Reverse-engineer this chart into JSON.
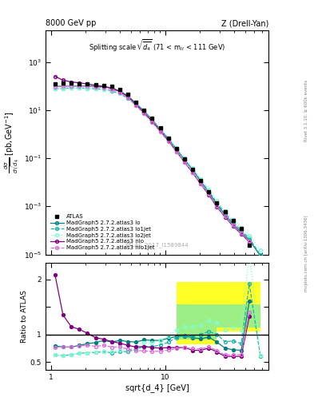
{
  "title_top_left": "8000 GeV pp",
  "title_top_right": "Z (Drell-Yan)",
  "main_title": "Splitting scale $\\sqrt{\\overline{d_4}}$ (71 < m$_{ll}$ < 111 GeV)",
  "ylabel_main": "d$\\sigma$/dsqrt($d_4$) [pb,GeV$^{-1}$]",
  "ylabel_ratio": "Ratio to ATLAS",
  "xlabel": "sqrt{d_4} [GeV]",
  "watermark": "ATLAS_2017_I1589844",
  "right_label": "Rivet 3.1.10, ≥ 600k events",
  "right_label2": "mcplots.cern.ch [arXiv:1306.3436]",
  "atlas_x": [
    1.09,
    1.28,
    1.51,
    1.78,
    2.09,
    2.46,
    2.9,
    3.41,
    4.01,
    4.72,
    5.56,
    6.54,
    7.7,
    9.06,
    10.67,
    12.55,
    14.77,
    17.38,
    20.45,
    24.07,
    28.33,
    33.35,
    39.24,
    46.2,
    54.4
  ],
  "atlas_y": [
    120,
    130,
    130,
    125,
    120,
    115,
    105,
    95,
    70,
    45,
    22,
    10,
    4.5,
    1.8,
    0.7,
    0.25,
    0.09,
    0.035,
    0.012,
    0.004,
    0.0014,
    0.0006,
    0.00025,
    0.00012,
    2.5e-05
  ],
  "lo_x": [
    1.09,
    1.28,
    1.51,
    1.78,
    2.09,
    2.46,
    2.9,
    3.41,
    4.01,
    4.72,
    5.56,
    6.54,
    7.7,
    9.06,
    10.67,
    12.55,
    14.77,
    17.38,
    20.45,
    24.07,
    28.33,
    33.35,
    39.24,
    46.2,
    54.4,
    68.0
  ],
  "lo_y": [
    95,
    100,
    100,
    100,
    100,
    98,
    93,
    82,
    62,
    39,
    19,
    9,
    4.0,
    1.6,
    0.65,
    0.24,
    0.087,
    0.033,
    0.011,
    0.0038,
    0.0012,
    0.00045,
    0.00018,
    8.5e-05,
    4e-05,
    8.7e-06
  ],
  "lo1jet_x": [
    1.09,
    1.28,
    1.51,
    1.78,
    2.09,
    2.46,
    2.9,
    3.41,
    4.01,
    4.72,
    5.56,
    6.54,
    7.7,
    9.06,
    10.67,
    12.55,
    14.77,
    17.38,
    20.45,
    24.07,
    28.33,
    33.35,
    39.24,
    46.2,
    54.4,
    68.0
  ],
  "lo1jet_y": [
    75,
    80,
    82,
    82,
    80,
    77,
    72,
    63,
    48,
    31,
    16,
    7.8,
    3.5,
    1.45,
    0.6,
    0.235,
    0.088,
    0.034,
    0.012,
    0.0042,
    0.0014,
    0.00052,
    0.00022,
    0.0001,
    4.8e-05,
    9.5e-06
  ],
  "lo2jet_x": [
    1.09,
    1.28,
    1.51,
    1.78,
    2.09,
    2.46,
    2.9,
    3.41,
    4.01,
    4.72,
    5.56,
    6.54,
    7.7,
    9.06,
    10.67,
    12.55,
    14.77,
    17.38,
    20.45,
    24.07,
    28.33,
    33.35,
    39.24,
    46.2,
    54.4,
    68.0
  ],
  "lo2jet_y": [
    75,
    80,
    82,
    82,
    80,
    78,
    73,
    65,
    50,
    33,
    17,
    8.5,
    3.8,
    1.6,
    0.68,
    0.27,
    0.102,
    0.04,
    0.014,
    0.005,
    0.0017,
    0.00065,
    0.00028,
    0.00013,
    6.2e-05,
    1.55e-05
  ],
  "nlo_x": [
    1.09,
    1.28,
    1.51,
    1.78,
    2.09,
    2.46,
    2.9,
    3.41,
    4.01,
    4.72,
    5.56,
    6.54,
    7.7,
    9.06,
    10.67,
    12.55,
    14.77,
    17.38,
    20.45,
    24.07,
    28.33,
    33.35,
    39.24,
    46.2,
    54.4
  ],
  "nlo_y": [
    250,
    175,
    148,
    136,
    122,
    108,
    96,
    83,
    59,
    36,
    17,
    7.8,
    3.4,
    1.35,
    0.53,
    0.19,
    0.068,
    0.025,
    0.0085,
    0.003,
    0.00095,
    0.00036,
    0.00015,
    7.2e-05,
    3.3e-05
  ],
  "nlo1jet_x": [
    1.09,
    1.28,
    1.51,
    1.78,
    2.09,
    2.46,
    2.9,
    3.41,
    4.01,
    4.72,
    5.56,
    6.54,
    7.7,
    9.06,
    10.67,
    12.55,
    14.77,
    17.38,
    20.45,
    24.07,
    28.33,
    33.35,
    39.24,
    46.2,
    54.4
  ],
  "nlo1jet_y": [
    92,
    100,
    100,
    99,
    96,
    90,
    84,
    73,
    54,
    33,
    15.5,
    7.0,
    3.1,
    1.25,
    0.5,
    0.185,
    0.068,
    0.026,
    0.0088,
    0.0031,
    0.00099,
    0.000375,
    0.000158,
    7.6e-05,
    3.5e-05
  ],
  "ratio_lo_x": [
    1.09,
    1.28,
    1.51,
    1.78,
    2.09,
    2.46,
    2.9,
    3.41,
    4.01,
    4.72,
    5.56,
    6.54,
    7.7,
    9.06,
    10.67,
    12.55,
    14.77,
    17.38,
    20.45,
    24.07,
    28.33,
    33.35,
    39.24,
    46.2,
    54.4
  ],
  "ratio_lo_y": [
    0.79,
    0.77,
    0.77,
    0.8,
    0.83,
    0.85,
    0.89,
    0.86,
    0.89,
    0.87,
    0.86,
    0.9,
    0.89,
    0.89,
    0.93,
    0.96,
    0.97,
    0.94,
    0.92,
    0.95,
    0.86,
    0.75,
    0.72,
    0.71,
    1.6
  ],
  "ratio_lo1jet_x": [
    1.09,
    1.28,
    1.51,
    1.78,
    2.09,
    2.46,
    2.9,
    3.41,
    4.01,
    4.72,
    5.56,
    6.54,
    7.7,
    9.06,
    10.67,
    12.55,
    14.77,
    17.38,
    20.45,
    24.07,
    28.33,
    33.35,
    39.24,
    46.2,
    54.4,
    68.0
  ],
  "ratio_lo1jet_y": [
    0.625,
    0.615,
    0.63,
    0.655,
    0.667,
    0.67,
    0.686,
    0.663,
    0.686,
    0.689,
    0.727,
    0.78,
    0.778,
    0.806,
    0.857,
    0.94,
    0.978,
    0.971,
    1.0,
    1.05,
    1.0,
    0.867,
    0.88,
    0.833,
    1.92,
    0.6
  ],
  "ratio_lo2jet_x": [
    1.09,
    1.28,
    1.51,
    1.78,
    2.09,
    2.46,
    2.9,
    3.41,
    4.01,
    4.72,
    5.56,
    6.54,
    7.7,
    9.06,
    10.67,
    12.55,
    14.77,
    17.38,
    20.45,
    24.07,
    28.33,
    33.35,
    39.24,
    46.2,
    54.4,
    68.0
  ],
  "ratio_lo2jet_y": [
    0.625,
    0.615,
    0.63,
    0.655,
    0.667,
    0.678,
    0.695,
    0.684,
    0.714,
    0.733,
    0.773,
    0.85,
    0.844,
    0.889,
    0.971,
    1.08,
    1.133,
    1.143,
    1.167,
    1.25,
    1.214,
    1.083,
    1.12,
    1.083,
    2.49,
    0.62
  ],
  "ratio_nlo_x": [
    1.09,
    1.28,
    1.51,
    1.78,
    2.09,
    2.46,
    2.9,
    3.41,
    4.01,
    4.72,
    5.56,
    6.54,
    7.7,
    9.06,
    10.67,
    12.55,
    14.77,
    17.38,
    20.45,
    24.07,
    28.33,
    33.35,
    39.24,
    46.2,
    54.4
  ],
  "ratio_nlo_y": [
    2.08,
    1.35,
    1.14,
    1.09,
    1.02,
    0.94,
    0.91,
    0.87,
    0.84,
    0.8,
    0.77,
    0.78,
    0.76,
    0.75,
    0.76,
    0.76,
    0.76,
    0.71,
    0.71,
    0.75,
    0.68,
    0.6,
    0.6,
    0.6,
    1.32
  ],
  "ratio_nlo1jet_x": [
    1.09,
    1.28,
    1.51,
    1.78,
    2.09,
    2.46,
    2.9,
    3.41,
    4.01,
    4.72,
    5.56,
    6.54,
    7.7,
    9.06,
    10.67,
    12.55,
    14.77,
    17.38,
    20.45,
    24.07,
    28.33,
    33.35,
    39.24,
    46.2,
    54.4
  ],
  "ratio_nlo1jet_y": [
    0.767,
    0.769,
    0.769,
    0.792,
    0.8,
    0.783,
    0.8,
    0.768,
    0.771,
    0.733,
    0.705,
    0.7,
    0.689,
    0.694,
    0.714,
    0.74,
    0.756,
    0.743,
    0.733,
    0.775,
    0.707,
    0.625,
    0.632,
    0.633,
    1.4
  ],
  "color_lo": "#008080",
  "color_lo1jet": "#20B2AA",
  "color_lo2jet": "#7FFFD4",
  "color_nlo": "#800080",
  "color_nlo1jet": "#DA70D6",
  "band_yellow_edges": [
    12.55,
    20.45,
    28.33,
    68.0
  ],
  "band_yellow_lows": [
    0.82,
    0.82,
    1.05,
    1.05
  ],
  "band_yellow_highs": [
    1.95,
    1.95,
    1.95,
    1.95
  ],
  "band_green_edges": [
    12.55,
    20.45,
    28.33,
    68.0
  ],
  "band_green_lows": [
    0.91,
    0.91,
    1.12,
    1.12
  ],
  "band_green_highs": [
    1.55,
    1.55,
    1.55,
    1.55
  ]
}
